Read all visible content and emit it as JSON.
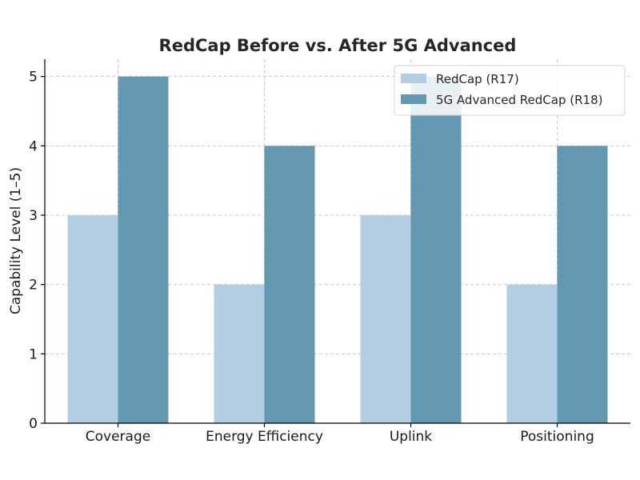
{
  "chart_data": {
    "type": "bar",
    "title": "RedCap Before vs. After 5G Advanced",
    "xlabel": "",
    "ylabel": "Capability Level (1–5)",
    "categories": [
      "Coverage",
      "Energy Efficiency",
      "Uplink",
      "Positioning"
    ],
    "series": [
      {
        "name": "RedCap (R17)",
        "values": [
          3,
          2,
          3,
          2
        ],
        "color": "#b3cde3"
      },
      {
        "name": "5G Advanced RedCap (R18)",
        "values": [
          5,
          4,
          5,
          4
        ],
        "color": "#6497b1"
      }
    ],
    "ylim": [
      0,
      5.25
    ],
    "yticks": [
      "0",
      "1",
      "2",
      "3",
      "4",
      "5"
    ],
    "grid": true,
    "legend_position": "top-right"
  }
}
